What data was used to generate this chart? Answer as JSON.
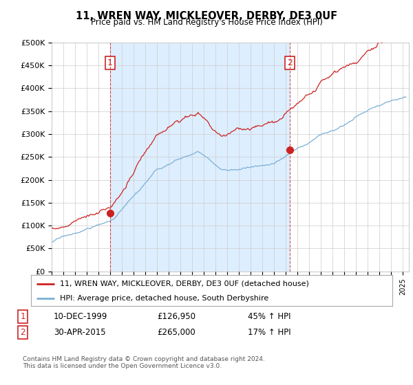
{
  "title": "11, WREN WAY, MICKLEOVER, DERBY, DE3 0UF",
  "subtitle": "Price paid vs. HM Land Registry's House Price Index (HPI)",
  "red_label": "11, WREN WAY, MICKLEOVER, DERBY, DE3 0UF (detached house)",
  "blue_label": "HPI: Average price, detached house, South Derbyshire",
  "point1_date": "10-DEC-1999",
  "point1_price": 126950,
  "point1_hpi": "45% ↑ HPI",
  "point1_year": 2000.0,
  "point2_date": "30-APR-2015",
  "point2_price": 265000,
  "point2_hpi": "17% ↑ HPI",
  "point2_year": 2015.33,
  "footer": "Contains HM Land Registry data © Crown copyright and database right 2024.\nThis data is licensed under the Open Government Licence v3.0.",
  "red_color": "#cc2222",
  "blue_color": "#7bafd4",
  "shade_color": "#ddeeff",
  "ylim": [
    0,
    500000
  ],
  "xlim_start": 1995.0,
  "xlim_end": 2025.5,
  "yticks": [
    0,
    50000,
    100000,
    150000,
    200000,
    250000,
    300000,
    350000,
    400000,
    450000,
    500000
  ],
  "ytick_labels": [
    "£0",
    "£50K",
    "£100K",
    "£150K",
    "£200K",
    "£250K",
    "£300K",
    "£350K",
    "£400K",
    "£450K",
    "£500K"
  ],
  "bg_color": "#ffffff",
  "grid_color": "#cccccc"
}
